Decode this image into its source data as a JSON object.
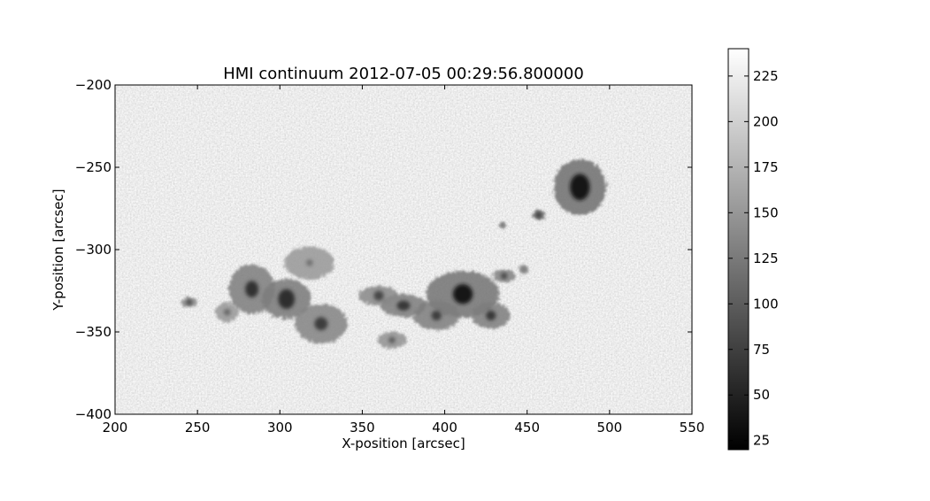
{
  "chart_data": {
    "type": "heatmap",
    "title": "HMI continuum 2012-07-05 00:29:56.800000",
    "xlabel": "X-position [arcsec]",
    "ylabel": "Y-position [arcsec]",
    "xlim": [
      200,
      550
    ],
    "ylim": [
      -400,
      -200
    ],
    "x_ticks": [
      200,
      250,
      300,
      350,
      400,
      450,
      500,
      550
    ],
    "x_tick_labels": [
      "200",
      "250",
      "300",
      "350",
      "400",
      "450",
      "500",
      "550"
    ],
    "y_ticks": [
      -200,
      -250,
      -300,
      -350,
      -400
    ],
    "y_tick_labels": [
      "−200",
      "−250",
      "−300",
      "−350",
      "−400"
    ],
    "colormap": "gray",
    "colorbar": {
      "range": [
        20,
        240
      ],
      "ticks": [
        25,
        50,
        75,
        100,
        125,
        150,
        175,
        200,
        225
      ],
      "tick_labels": [
        "25",
        "50",
        "75",
        "100",
        "125",
        "150",
        "175",
        "200",
        "225"
      ]
    },
    "background_level": 205,
    "features": [
      {
        "x": 482,
        "y": -262,
        "umbra_rx": 6,
        "umbra_ry": 8,
        "penumbra_rx": 16,
        "penumbra_ry": 17,
        "umbra_value": 22,
        "penumbra_value": 110
      },
      {
        "x": 411,
        "y": -327,
        "umbra_rx": 6,
        "umbra_ry": 6,
        "penumbra_rx": 22,
        "penumbra_ry": 14,
        "umbra_value": 25,
        "penumbra_value": 115
      },
      {
        "x": 304,
        "y": -330,
        "umbra_rx": 5,
        "umbra_ry": 6,
        "penumbra_rx": 15,
        "penumbra_ry": 12,
        "umbra_value": 45,
        "penumbra_value": 120
      },
      {
        "x": 283,
        "y": -324,
        "umbra_rx": 4,
        "umbra_ry": 5,
        "penumbra_rx": 14,
        "penumbra_ry": 15,
        "umbra_value": 50,
        "penumbra_value": 125
      },
      {
        "x": 325,
        "y": -345,
        "umbra_rx": 4,
        "umbra_ry": 4,
        "penumbra_rx": 16,
        "penumbra_ry": 12,
        "umbra_value": 60,
        "penumbra_value": 130
      },
      {
        "x": 318,
        "y": -308,
        "umbra_rx": 2,
        "umbra_ry": 2,
        "penumbra_rx": 15,
        "penumbra_ry": 10,
        "umbra_value": 110,
        "penumbra_value": 150
      },
      {
        "x": 375,
        "y": -334,
        "umbra_rx": 4,
        "umbra_ry": 3,
        "penumbra_rx": 14,
        "penumbra_ry": 7,
        "umbra_value": 55,
        "penumbra_value": 125
      },
      {
        "x": 360,
        "y": -328,
        "umbra_rx": 3,
        "umbra_ry": 3,
        "penumbra_rx": 12,
        "penumbra_ry": 6,
        "umbra_value": 70,
        "penumbra_value": 135
      },
      {
        "x": 395,
        "y": -340,
        "umbra_rx": 3,
        "umbra_ry": 3,
        "penumbra_rx": 14,
        "penumbra_ry": 9,
        "umbra_value": 60,
        "penumbra_value": 125
      },
      {
        "x": 428,
        "y": -340,
        "umbra_rx": 3,
        "umbra_ry": 3,
        "penumbra_rx": 12,
        "penumbra_ry": 8,
        "umbra_value": 55,
        "penumbra_value": 125
      },
      {
        "x": 436,
        "y": -316,
        "umbra_rx": 2,
        "umbra_ry": 2,
        "penumbra_rx": 7,
        "penumbra_ry": 4,
        "umbra_value": 70,
        "penumbra_value": 130
      },
      {
        "x": 457,
        "y": -279,
        "umbra_rx": 2,
        "umbra_ry": 2,
        "penumbra_rx": 4,
        "penumbra_ry": 3,
        "umbra_value": 60,
        "penumbra_value": 120
      },
      {
        "x": 245,
        "y": -332,
        "umbra_rx": 2,
        "umbra_ry": 2,
        "penumbra_rx": 5,
        "penumbra_ry": 3,
        "umbra_value": 80,
        "penumbra_value": 140
      },
      {
        "x": 368,
        "y": -355,
        "umbra_rx": 2,
        "umbra_ry": 2,
        "penumbra_rx": 9,
        "penumbra_ry": 5,
        "umbra_value": 90,
        "penumbra_value": 145
      },
      {
        "x": 268,
        "y": -338,
        "umbra_rx": 2,
        "umbra_ry": 2,
        "penumbra_rx": 7,
        "penumbra_ry": 6,
        "umbra_value": 100,
        "penumbra_value": 150
      },
      {
        "x": 435,
        "y": -285,
        "umbra_rx": 1,
        "umbra_ry": 1,
        "penumbra_rx": 2,
        "penumbra_ry": 2,
        "umbra_value": 80,
        "penumbra_value": 140
      },
      {
        "x": 448,
        "y": -312,
        "umbra_rx": 1,
        "umbra_ry": 1,
        "penumbra_rx": 3,
        "penumbra_ry": 3,
        "umbra_value": 80,
        "penumbra_value": 140
      }
    ]
  }
}
